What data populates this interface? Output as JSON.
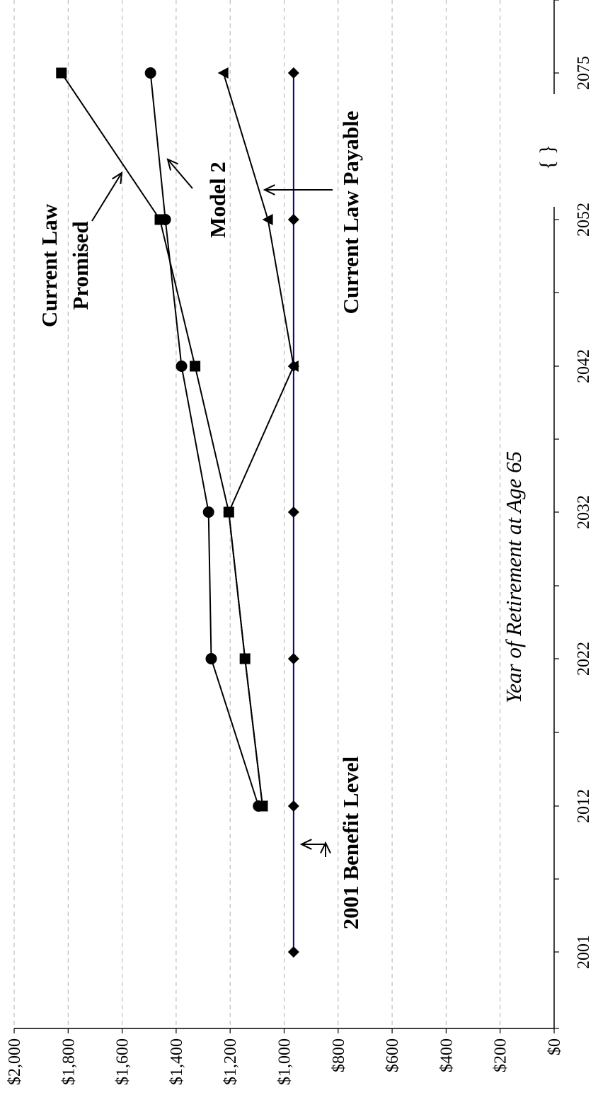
{
  "chart_data": {
    "type": "line",
    "orientation": "rotated-90-clockwise",
    "x_label": "Year of Retirement at Age 65",
    "x_categories": [
      "2001",
      "2012",
      "2022",
      "2032",
      "2042",
      "2052",
      "2075"
    ],
    "axis_break_symbol": "{ }",
    "y_ticks": [
      "$0",
      "$200",
      "$400",
      "$600",
      "$800",
      "$1,000",
      "$1,200",
      "$1,400",
      "$1,600",
      "$1,800",
      "$2,000"
    ],
    "ylim": [
      0,
      2000
    ],
    "grid": true,
    "series": [
      {
        "name": "2001 Benefit Level",
        "marker": "diamond",
        "color": "#000080",
        "x": [
          "2001",
          "2012",
          "2022",
          "2032",
          "2042",
          "2052",
          "2075"
        ],
        "values": [
          965,
          965,
          965,
          965,
          965,
          965,
          965
        ]
      },
      {
        "name": "Current Law Promised",
        "marker": "square",
        "color": "#000000",
        "x": [
          "2012",
          "2022",
          "2032",
          "2042",
          "2052",
          "2075"
        ],
        "values": [
          1080,
          1145,
          1205,
          1330,
          1460,
          1825
        ]
      },
      {
        "name": "Model 2",
        "marker": "circle",
        "color": "#000000",
        "x": [
          "2012",
          "2022",
          "2032",
          "2042",
          "2052",
          "2075"
        ],
        "values": [
          1095,
          1270,
          1280,
          1380,
          1440,
          1495
        ]
      },
      {
        "name": "Current Law Payable",
        "marker": "triangle",
        "color": "#000000",
        "x": [
          "2012",
          "2022",
          "2032",
          "2042",
          "2052",
          "2075"
        ],
        "values": [
          1080,
          1145,
          1205,
          965,
          1060,
          1225
        ]
      }
    ],
    "annotations": [
      {
        "lines": [
          "Current Law",
          "Promised"
        ]
      },
      {
        "lines": [
          "Model 2"
        ]
      },
      {
        "lines": [
          "Current Law Payable"
        ]
      },
      {
        "lines": [
          "2001 Benefit Level"
        ]
      }
    ]
  }
}
